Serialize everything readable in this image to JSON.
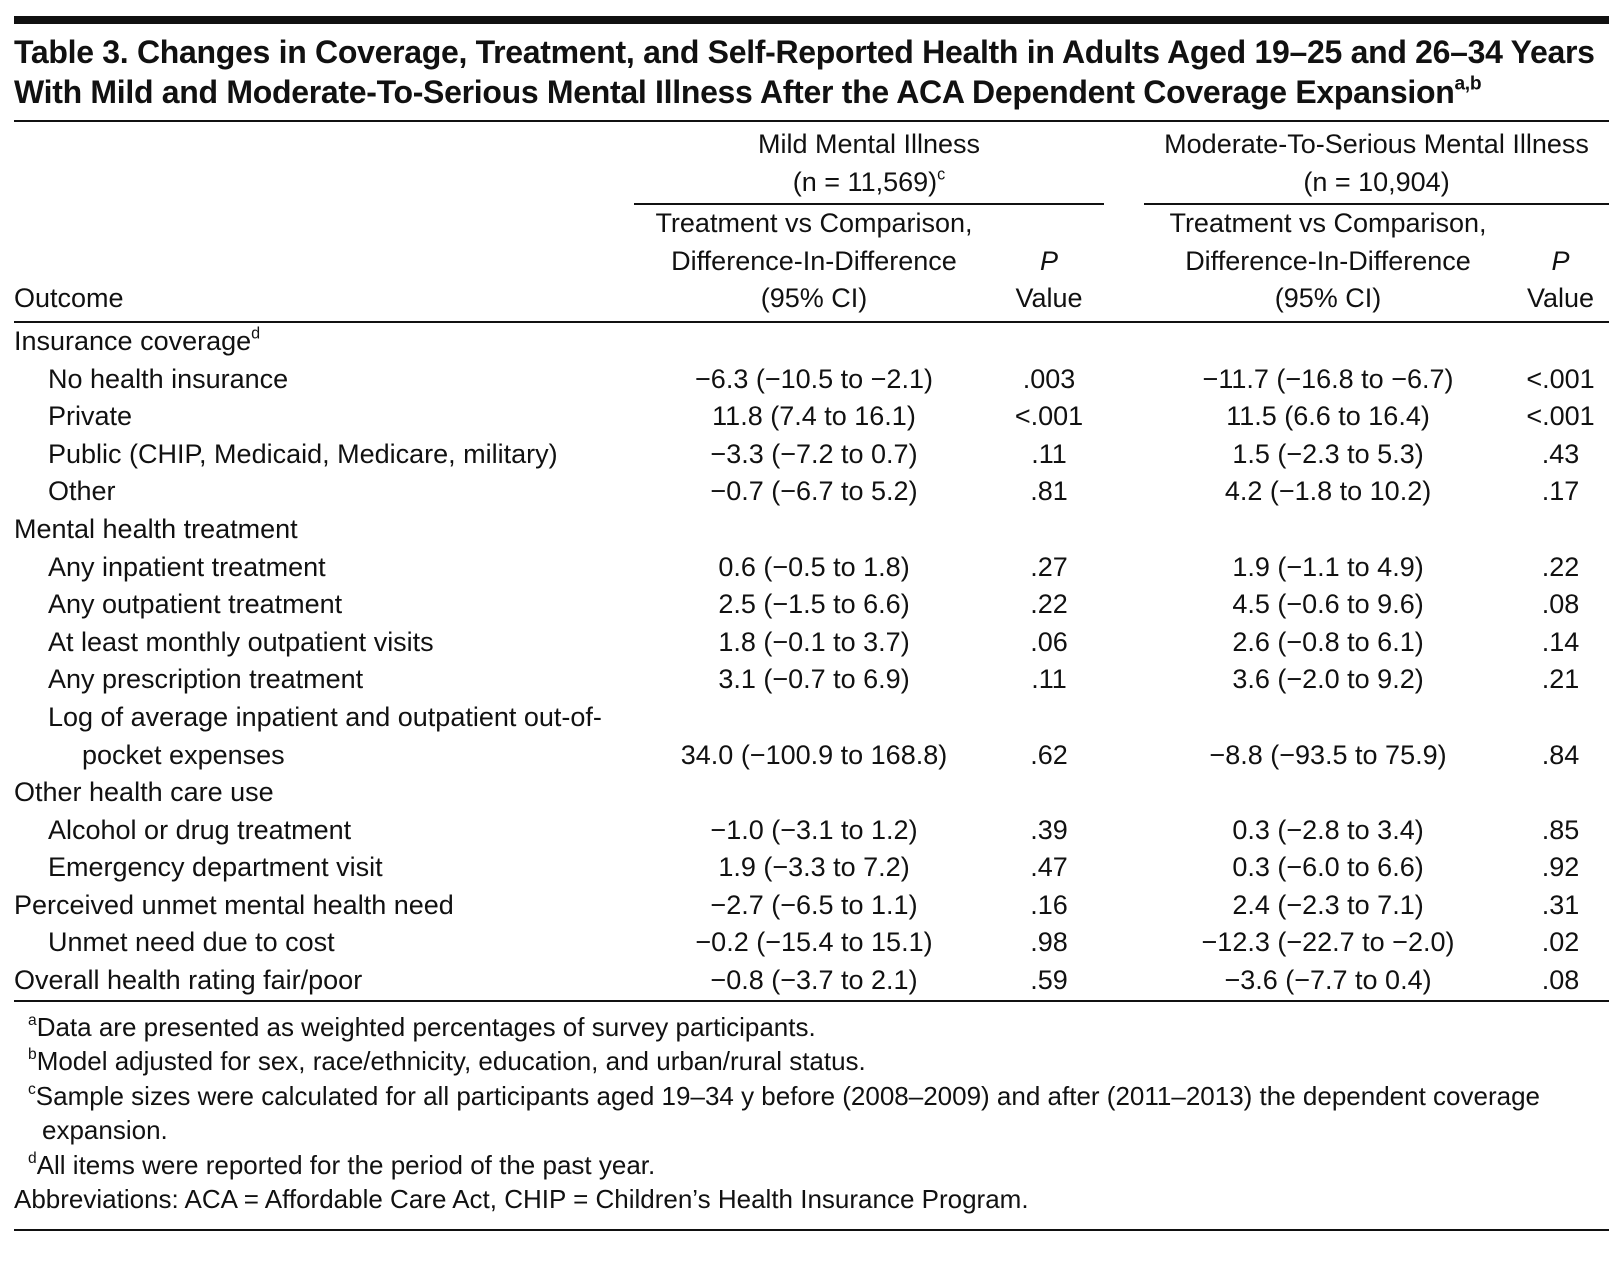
{
  "title": {
    "text": "Table 3. Changes in Coverage, Treatment, and Self-Reported Health in Adults Aged 19–25 and 26–34 Years With Mild and Moderate-To-Serious Mental Illness After the ACA Dependent Coverage Expansion",
    "sup": "a,b"
  },
  "header": {
    "outcome": "Outcome",
    "groups": [
      {
        "name": "Mild Mental Illness",
        "n": "(n = 11,569)",
        "sup": "c"
      },
      {
        "name": "Moderate-To-Serious Mental Illness",
        "n": "(n = 10,904)"
      }
    ],
    "estimate": [
      "Treatment vs Comparison,",
      "Difference-In-Difference",
      "(95% CI)"
    ],
    "p_value": [
      "P",
      "Value"
    ]
  },
  "groups": [
    {
      "label": "Insurance coverage",
      "sup": "d",
      "children": [
        {
          "label": "No health insurance",
          "cells": [
            "−6.3 (−10.5 to −2.1)",
            ".003",
            "−11.7 (−16.8 to −6.7)",
            "<.001"
          ]
        },
        {
          "label": "Private",
          "cells": [
            "11.8 (7.4 to 16.1)",
            "<.001",
            "11.5 (6.6 to 16.4)",
            "<.001"
          ]
        },
        {
          "label": "Public (CHIP, Medicaid, Medicare, military)",
          "cells": [
            "−3.3 (−7.2 to 0.7)",
            ".11",
            "1.5 (−2.3 to 5.3)",
            ".43"
          ]
        },
        {
          "label": "Other",
          "cells": [
            "−0.7 (−6.7 to 5.2)",
            ".81",
            "4.2 (−1.8 to 10.2)",
            ".17"
          ]
        }
      ]
    },
    {
      "label": "Mental health treatment",
      "children": [
        {
          "label": "Any inpatient treatment",
          "cells": [
            "0.6 (−0.5 to 1.8)",
            ".27",
            "1.9 (−1.1 to 4.9)",
            ".22"
          ]
        },
        {
          "label": "Any outpatient treatment",
          "cells": [
            "2.5 (−1.5 to 6.6)",
            ".22",
            "4.5 (−0.6 to 9.6)",
            ".08"
          ]
        },
        {
          "label": "At least monthly outpatient visits",
          "cells": [
            "1.8 (−0.1 to 3.7)",
            ".06",
            "2.6 (−0.8 to 6.1)",
            ".14"
          ]
        },
        {
          "label": "Any prescription treatment",
          "cells": [
            "3.1 (−0.7 to 6.9)",
            ".11",
            "3.6 (−2.0 to 9.2)",
            ".21"
          ]
        },
        {
          "label": "Log of average inpatient and outpatient out-of-pocket expenses",
          "cells": [
            "34.0 (−100.9 to 168.8)",
            ".62",
            "−8.8 (−93.5 to 75.9)",
            ".84"
          ]
        }
      ]
    },
    {
      "label": "Other health care use",
      "children": [
        {
          "label": "Alcohol or drug treatment",
          "cells": [
            "−1.0 (−3.1 to 1.2)",
            ".39",
            "0.3 (−2.8 to 3.4)",
            ".85"
          ]
        },
        {
          "label": "Emergency department visit",
          "cells": [
            "1.9 (−3.3 to 7.2)",
            ".47",
            "0.3 (−6.0 to 6.6)",
            ".92"
          ]
        }
      ]
    },
    {
      "label": "Perceived unmet mental health need",
      "cells": [
        "−2.7 (−6.5 to 1.1)",
        ".16",
        "2.4 (−2.3 to 7.1)",
        ".31"
      ],
      "children": [
        {
          "label": "Unmet need due to cost",
          "cells": [
            "−0.2 (−15.4 to 15.1)",
            ".98",
            "−12.3 (−22.7 to −2.0)",
            ".02"
          ]
        }
      ]
    },
    {
      "label": "Overall health rating fair/poor",
      "cells": [
        "−0.8 (−3.7 to 2.1)",
        ".59",
        "−3.6 (−7.7 to 0.4)",
        ".08"
      ]
    }
  ],
  "footnotes": [
    {
      "sup": "a",
      "text": "Data are presented as weighted percentages of survey participants."
    },
    {
      "sup": "b",
      "text": "Model adjusted for sex, race/ethnicity, education, and urban/rural status."
    },
    {
      "sup": "c",
      "text": "Sample sizes were calculated for all participants aged 19–34 y before (2008–2009) and after (2011–2013) the dependent coverage expansion."
    },
    {
      "sup": "d",
      "text": "All items were reported for the period of the past year."
    }
  ],
  "abbreviations": "Abbreviations: ACA = Affordable Care Act, CHIP = Children’s Health Insurance Program."
}
